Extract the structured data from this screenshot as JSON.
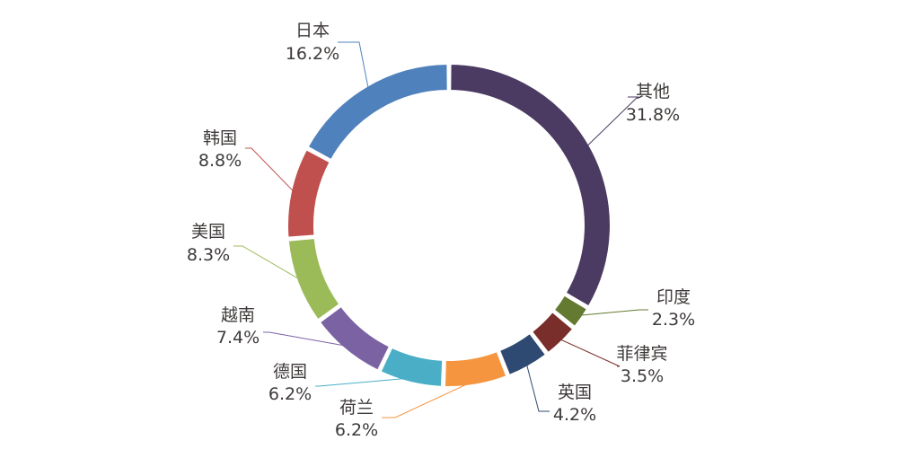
{
  "chart_data": {
    "type": "pie",
    "style": "donut",
    "title": "",
    "slices": [
      {
        "label": "其他",
        "value": 31.8,
        "display": "31.8%",
        "color": "#4d3b62"
      },
      {
        "label": "印度",
        "value": 2.3,
        "display": "2.3%",
        "color": "#647a31"
      },
      {
        "label": "菲律宾",
        "value": 3.5,
        "display": "3.5%",
        "color": "#7a2e2b"
      },
      {
        "label": "英国",
        "value": 4.2,
        "display": "4.2%",
        "color": "#2e4a72"
      },
      {
        "label": "荷兰",
        "value": 6.2,
        "display": "6.2%",
        "color": "#f6953f"
      },
      {
        "label": "德国",
        "value": 6.2,
        "display": "6.2%",
        "color": "#4aafc6"
      },
      {
        "label": "越南",
        "value": 7.4,
        "display": "7.4%",
        "color": "#7b63a3"
      },
      {
        "label": "美国",
        "value": 8.3,
        "display": "8.3%",
        "color": "#9bbb59"
      },
      {
        "label": "韩国",
        "value": 8.8,
        "display": "8.8%",
        "color": "#c0504d"
      },
      {
        "label": "日本",
        "value": 16.2,
        "display": "16.2%",
        "color": "#4f81bd"
      }
    ],
    "legend": "none"
  }
}
